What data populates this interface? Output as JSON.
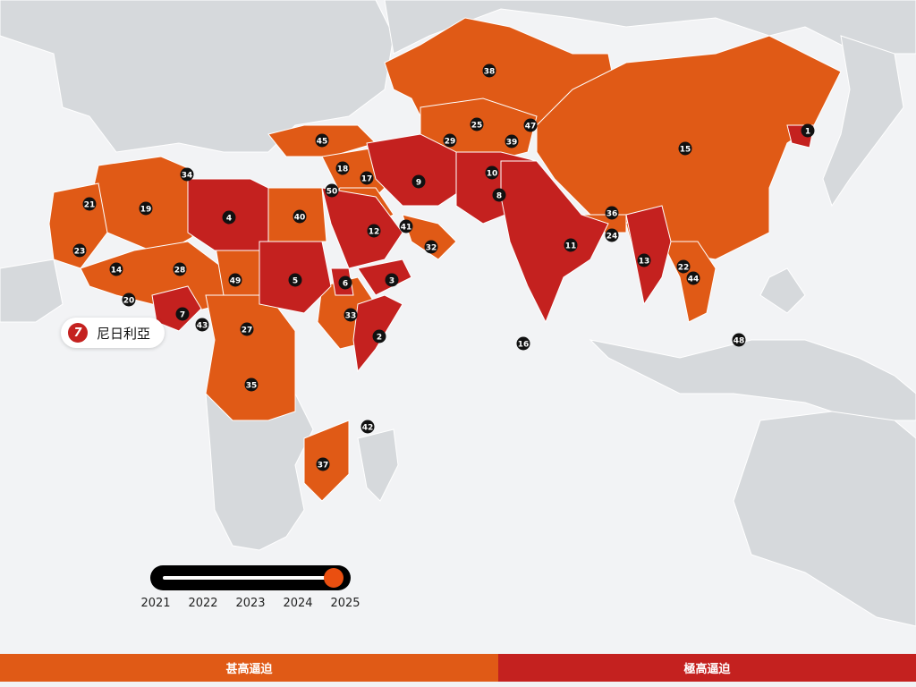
{
  "colors": {
    "ocean": "#f2f3f5",
    "land": "#d6d9dc",
    "very_high": "#e05a16",
    "extreme": "#c4211f",
    "marker": "#111111"
  },
  "tooltip": {
    "rank": "7",
    "country": "尼日利亞"
  },
  "timeline": {
    "years": [
      "2021",
      "2022",
      "2023",
      "2024",
      "2025"
    ],
    "selected": "2025"
  },
  "legend": {
    "very_high": "甚高逼迫",
    "extreme": "極高逼迫"
  },
  "markers": [
    "1",
    "2",
    "3",
    "4",
    "5",
    "6",
    "7",
    "8",
    "9",
    "10",
    "11",
    "12",
    "13",
    "14",
    "15",
    "16",
    "17",
    "18",
    "19",
    "20",
    "21",
    "22",
    "23",
    "24",
    "25",
    "27",
    "28",
    "29",
    "32",
    "33",
    "34",
    "35",
    "36",
    "37",
    "38",
    "39",
    "40",
    "41",
    "42",
    "43",
    "44",
    "45",
    "47",
    "48",
    "49",
    "50"
  ]
}
